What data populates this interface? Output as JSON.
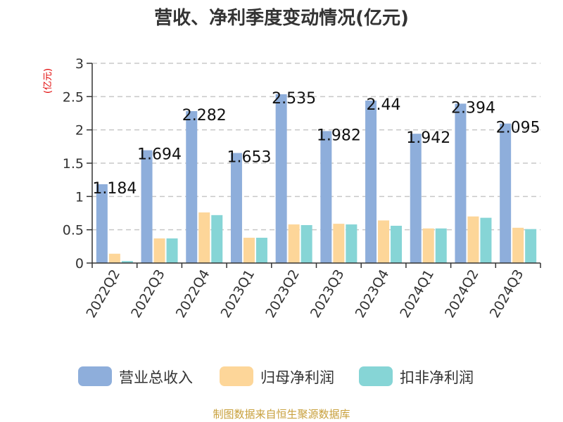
{
  "chart_data": {
    "type": "bar",
    "title": "营收、净利季度变动情况(亿元)",
    "ylabel": "(亿元)",
    "xlabel": "",
    "ylim": [
      0,
      3
    ],
    "yticks": [
      "0",
      "0.5",
      "1",
      "1.5",
      "2",
      "2.5",
      "3"
    ],
    "grid": true,
    "legend_position": "bottom",
    "categories": [
      "2022Q2",
      "2022Q3",
      "2022Q4",
      "2023Q1",
      "2023Q2",
      "2023Q3",
      "2023Q4",
      "2024Q1",
      "2024Q2",
      "2024Q3"
    ],
    "series": [
      {
        "name": "营业总收入",
        "color": "#8eaedb",
        "values": [
          1.184,
          1.694,
          2.282,
          1.653,
          2.535,
          1.982,
          2.44,
          1.942,
          2.394,
          2.095
        ]
      },
      {
        "name": "归母净利润",
        "color": "#fdd699",
        "values": [
          0.14,
          0.37,
          0.76,
          0.38,
          0.58,
          0.59,
          0.64,
          0.52,
          0.7,
          0.53
        ]
      },
      {
        "name": "扣非净利润",
        "color": "#86d5d6",
        "values": [
          0.03,
          0.37,
          0.72,
          0.38,
          0.57,
          0.58,
          0.56,
          0.52,
          0.68,
          0.51
        ]
      }
    ],
    "data_labels": [
      "1.184",
      "1.694",
      "2.282",
      "1.653",
      "2.535",
      "1.982",
      "2.44",
      "1.942",
      "2.394",
      "2.095"
    ]
  },
  "source": "制图数据来自恒生聚源数据库"
}
